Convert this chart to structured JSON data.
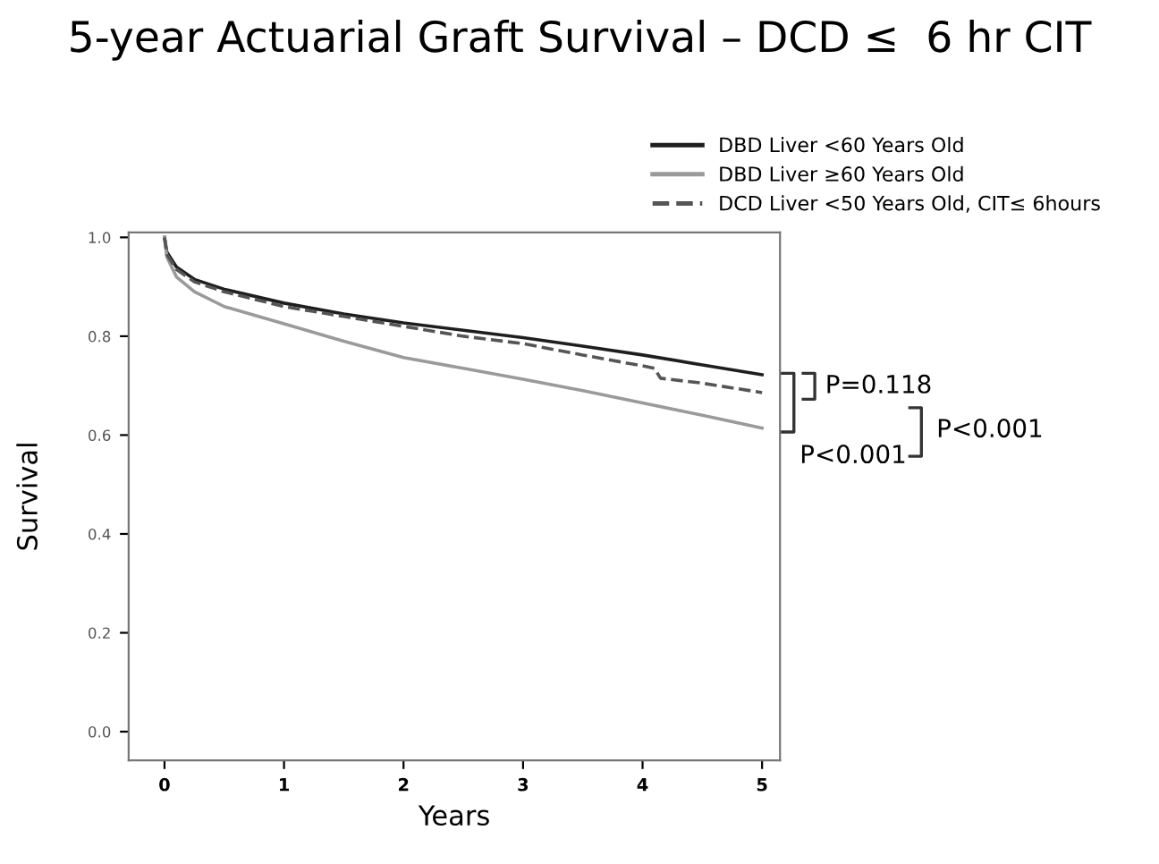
{
  "chart_data": {
    "type": "line",
    "title": "5-year Actuarial Graft Survival – DCD ≤  6 hr CIT",
    "xlabel": "Years",
    "ylabel": "Survival",
    "xlim": [
      -0.3,
      5.15
    ],
    "ylim": [
      -0.058,
      1.01
    ],
    "xticks": [
      0,
      1,
      2,
      3,
      4,
      5
    ],
    "yticks": [
      {
        "value": 0,
        "label": "0.0"
      },
      {
        "value": 0.2,
        "label": "0.2"
      },
      {
        "value": 0.4,
        "label": "0.4"
      },
      {
        "value": 0.6,
        "label": "0.6"
      },
      {
        "value": 0.8,
        "label": "0.8"
      },
      {
        "value": 1,
        "label": "1.0"
      }
    ],
    "grid": false,
    "legend": "top right",
    "marker": "none",
    "series": [
      {
        "name": "DBD Liver <60 Years Old",
        "color": "#1e1e1e",
        "line_style": "solid",
        "x": [
          0,
          0.02,
          0.1,
          0.25,
          0.5,
          1,
          1.5,
          2,
          2.5,
          3,
          3.5,
          4,
          4.5,
          5
        ],
        "values": [
          1.0,
          0.97,
          0.94,
          0.915,
          0.895,
          0.867,
          0.845,
          0.827,
          0.812,
          0.797,
          0.78,
          0.762,
          0.742,
          0.722
        ]
      },
      {
        "name": "DBD Liver ≥60 Years Old",
        "color": "#9a9a9a",
        "line_style": "solid",
        "x": [
          0,
          0.02,
          0.1,
          0.25,
          0.5,
          1,
          1.5,
          2,
          2.5,
          3,
          3.5,
          4,
          4.5,
          5
        ],
        "values": [
          1.0,
          0.96,
          0.92,
          0.89,
          0.86,
          0.825,
          0.79,
          0.757,
          0.735,
          0.713,
          0.69,
          0.665,
          0.64,
          0.614
        ]
      },
      {
        "name": "DCD Liver <50 Years Old, CIT≤ 6hours",
        "color": "#555555",
        "line_style": "dashed",
        "x": [
          0,
          0.02,
          0.1,
          0.25,
          0.5,
          1,
          1.5,
          2,
          2.5,
          3,
          3.5,
          4,
          4.1,
          4.15,
          4.5,
          5
        ],
        "values": [
          1.0,
          0.965,
          0.935,
          0.91,
          0.89,
          0.86,
          0.84,
          0.82,
          0.8,
          0.785,
          0.762,
          0.74,
          0.735,
          0.715,
          0.705,
          0.686
        ]
      }
    ],
    "annotations": [
      "P=0.118",
      "P<0.001",
      "P<0.001"
    ]
  }
}
